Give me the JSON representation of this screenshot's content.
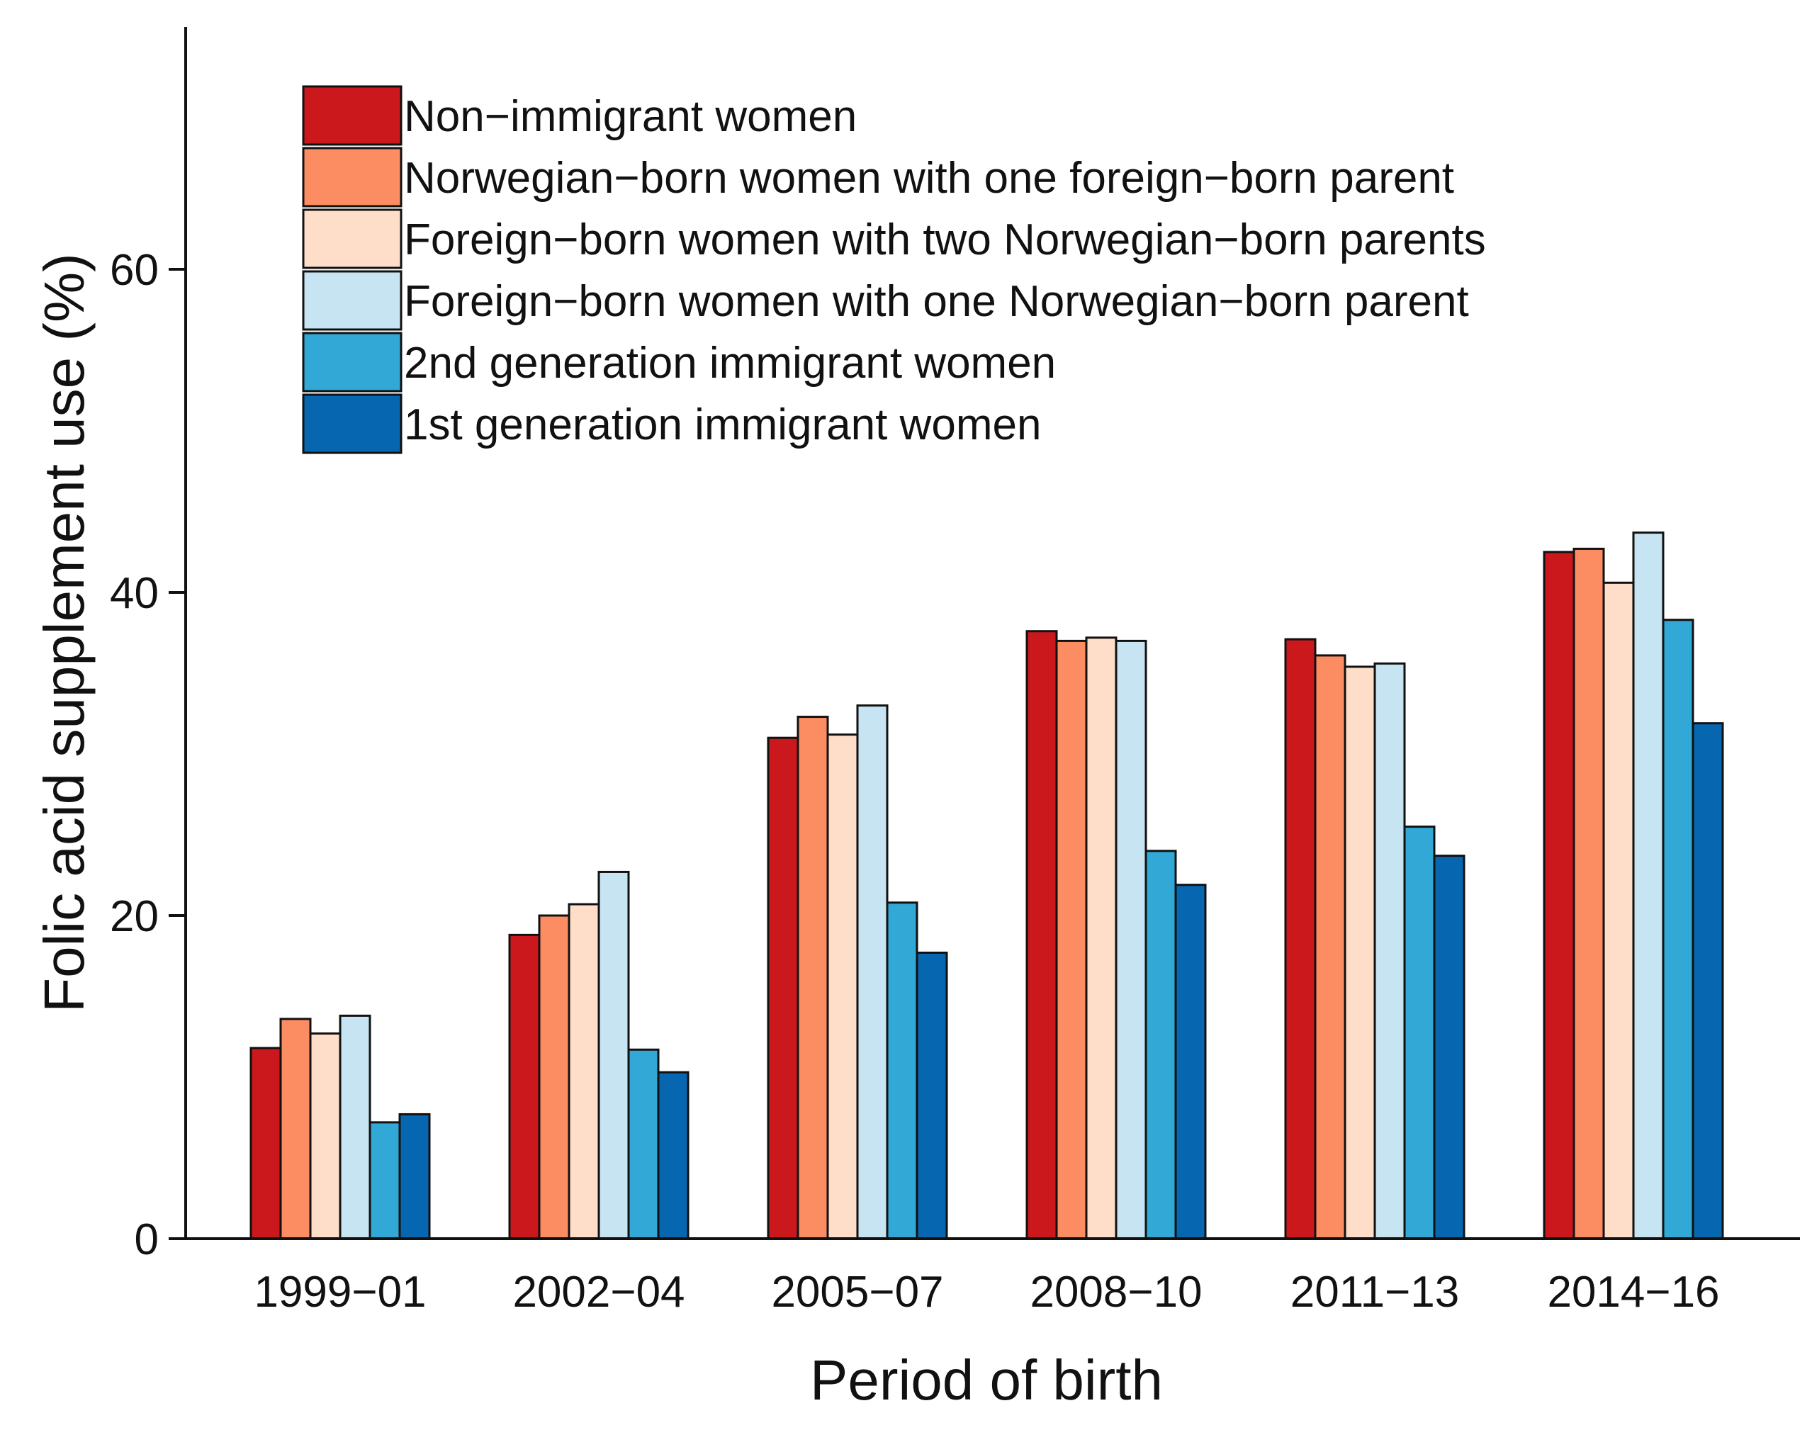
{
  "chart_data": {
    "type": "bar",
    "title": "",
    "xlabel": "Period of birth",
    "ylabel": "Folic acid supplement use (%)",
    "ylim": [
      0,
      75
    ],
    "yticks": [
      "0",
      "20",
      "40",
      "60"
    ],
    "ytick_values": [
      0,
      20,
      40,
      60
    ],
    "grid": false,
    "legend_position": "top-left",
    "categories": [
      "1999−01",
      "2002−04",
      "2005−07",
      "2008−10",
      "2011−13",
      "2014−16"
    ],
    "series": [
      {
        "name": "Non−immigrant women",
        "color": "#CB181D",
        "values": [
          11.8,
          18.8,
          31.0,
          37.6,
          37.1,
          42.5
        ]
      },
      {
        "name": "Norwegian−born women with one foreign−born parent",
        "color": "#FC8D62",
        "values": [
          13.6,
          20.0,
          32.3,
          37.0,
          36.1,
          42.7
        ]
      },
      {
        "name": "Foreign−born women with two Norwegian−born parents",
        "color": "#FEDDC9",
        "values": [
          12.7,
          20.7,
          31.2,
          37.2,
          35.4,
          40.6
        ]
      },
      {
        "name": "Foreign−born women with one Norwegian−born parent",
        "color": "#C6E4F1",
        "values": [
          13.8,
          22.7,
          33.0,
          37.0,
          35.6,
          43.7
        ]
      },
      {
        "name": "2nd generation immigrant women",
        "color": "#31A8D6",
        "values": [
          7.2,
          11.7,
          20.8,
          24.0,
          25.5,
          38.3
        ]
      },
      {
        "name": "1st generation immigrant women",
        "color": "#0667B0",
        "values": [
          7.7,
          10.3,
          17.7,
          21.9,
          23.7,
          31.9
        ]
      }
    ]
  }
}
